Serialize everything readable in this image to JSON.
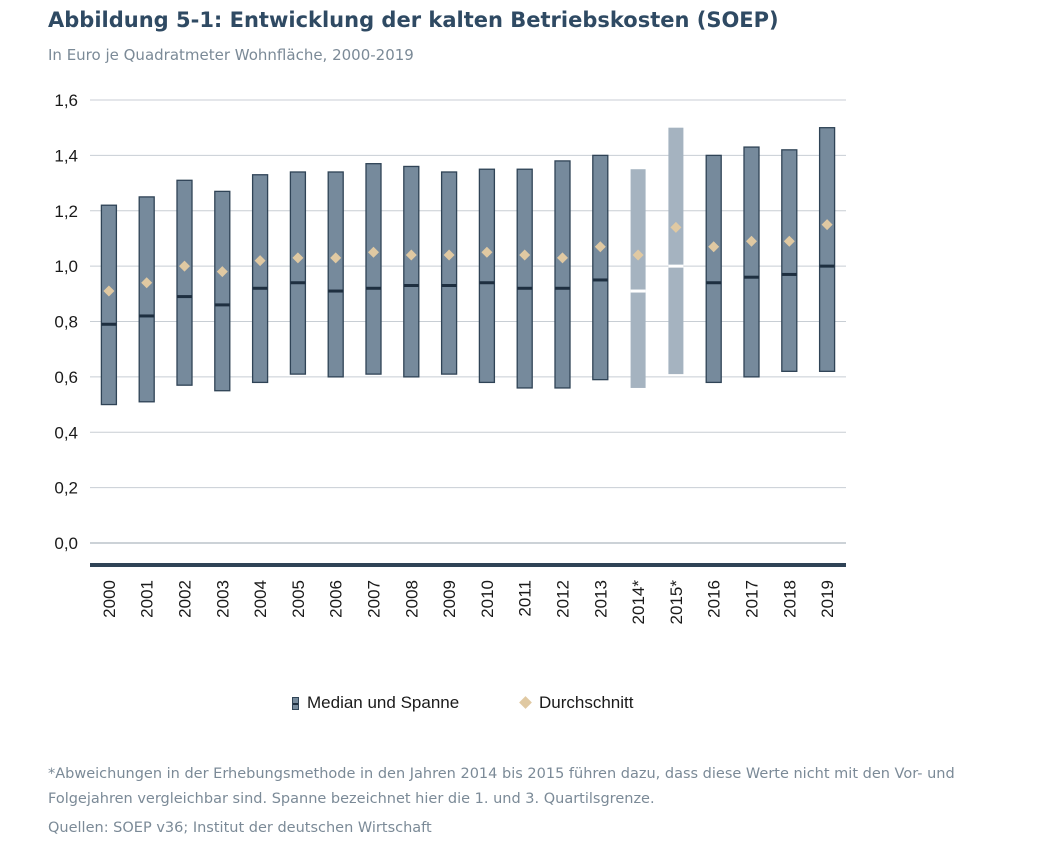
{
  "title": "Abbildung 5-1: Entwicklung der kalten Betriebskosten (SOEP)",
  "subtitle": "In Euro je Quadratmeter Wohnfläche, 2000-2019",
  "legend": {
    "range_label": "Median und Spanne",
    "mean_label": "Durchschnitt"
  },
  "footnote": "*Abweichungen in der Erhebungsmethode in den Jahren 2014 bis 2015 führen dazu, dass diese Werte nicht mit den Vor- und Folgejahren vergleichbar sind. Spanne bezeichnet hier die 1. und 3. Quartilsgrenze.",
  "source": "Quellen: SOEP v36; Institut der deutschen Wirtschaft",
  "colors": {
    "box": "#768a9c",
    "box_border": "#2f4356",
    "box_highlight": "#a5b3c0",
    "median": "#1e2f40",
    "mean": "#e0c9a2",
    "baseline": "#2f4356",
    "grid": "#c8ced4"
  },
  "chart_data": {
    "type": "boxplot",
    "categories": [
      "2000",
      "2001",
      "2002",
      "2003",
      "2004",
      "2005",
      "2006",
      "2007",
      "2008",
      "2009",
      "2010",
      "2011",
      "2012",
      "2013",
      "2014*",
      "2015*",
      "2016",
      "2017",
      "2018",
      "2019"
    ],
    "highlighted_categories": [
      "2014*",
      "2015*"
    ],
    "ylim": [
      0,
      1.6
    ],
    "yticks": [
      "0,0",
      "0,2",
      "0,4",
      "0,6",
      "0,8",
      "1,0",
      "1,2",
      "1,4",
      "1,6"
    ],
    "grid": true,
    "legend_position": "bottom",
    "series": [
      {
        "name": "Median und Spanne",
        "q1": [
          0.5,
          0.51,
          0.57,
          0.55,
          0.58,
          0.61,
          0.6,
          0.61,
          0.6,
          0.61,
          0.58,
          0.56,
          0.56,
          0.59,
          0.56,
          0.61,
          0.58,
          0.6,
          0.62,
          0.62
        ],
        "median": [
          0.79,
          0.82,
          0.89,
          0.86,
          0.92,
          0.94,
          0.91,
          0.92,
          0.93,
          0.93,
          0.94,
          0.92,
          0.92,
          0.95,
          0.91,
          1.0,
          0.94,
          0.96,
          0.97,
          1.0
        ],
        "q3": [
          1.22,
          1.25,
          1.31,
          1.27,
          1.33,
          1.34,
          1.34,
          1.37,
          1.36,
          1.34,
          1.35,
          1.35,
          1.38,
          1.4,
          1.35,
          1.5,
          1.4,
          1.43,
          1.42,
          1.5
        ]
      },
      {
        "name": "Durchschnitt",
        "values": [
          0.91,
          0.94,
          1.0,
          0.98,
          1.02,
          1.03,
          1.03,
          1.05,
          1.04,
          1.04,
          1.05,
          1.04,
          1.03,
          1.07,
          1.04,
          1.14,
          1.07,
          1.09,
          1.09,
          1.15
        ]
      }
    ]
  }
}
